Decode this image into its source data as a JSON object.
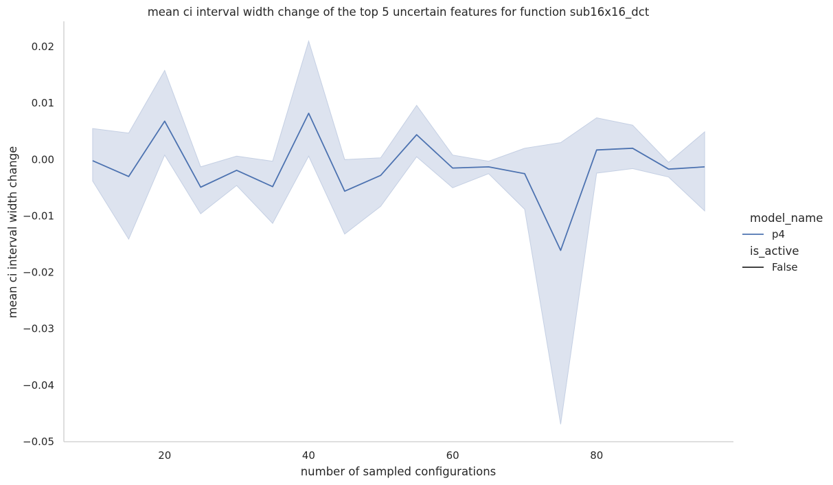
{
  "chart_data": {
    "type": "line",
    "title": "mean ci interval width change of the top 5 uncertain features for function sub16x16_dct",
    "xlabel": "number of sampled configurations",
    "ylabel": "mean ci interval width change",
    "xlim": [
      6,
      99
    ],
    "ylim": [
      -0.05,
      0.0245
    ],
    "xticks": [
      20,
      40,
      60,
      80
    ],
    "yticks": [
      -0.05,
      -0.04,
      -0.03,
      -0.02,
      -0.01,
      0.0,
      0.01,
      0.02
    ],
    "grid": false,
    "legend_position": "right",
    "colors": {
      "line": "#4c72b0",
      "band": "#dde3ef",
      "band_edge": "#c4cfe3"
    },
    "x": [
      10,
      15,
      20,
      25,
      30,
      35,
      40,
      45,
      50,
      55,
      60,
      65,
      70,
      75,
      80,
      85,
      90,
      95
    ],
    "series": [
      {
        "name": "p4",
        "values": [
          -0.0002,
          -0.003,
          0.0068,
          -0.0049,
          -0.0019,
          -0.0048,
          0.0082,
          -0.0056,
          -0.0028,
          0.0044,
          -0.0015,
          -0.0013,
          -0.0025,
          -0.0161,
          0.0017,
          0.002,
          -0.0017,
          -0.0013
        ],
        "ci_lower": [
          -0.0038,
          -0.0141,
          0.0008,
          -0.0096,
          -0.0046,
          -0.0113,
          0.0006,
          -0.0132,
          -0.0083,
          0.0005,
          -0.005,
          -0.0025,
          -0.0088,
          -0.0469,
          -0.0024,
          -0.0016,
          -0.0031,
          -0.0091
        ],
        "ci_upper": [
          0.0055,
          0.0047,
          0.0158,
          -0.0013,
          0.0006,
          -0.0003,
          0.021,
          0.0,
          0.0003,
          0.0096,
          0.0008,
          -0.0003,
          0.002,
          0.003,
          0.0074,
          0.0061,
          -0.0005,
          0.0049
        ]
      }
    ],
    "legend": {
      "hue_title": "model_name",
      "hue_entries": [
        "p4"
      ],
      "style_title": "is_active",
      "style_entries": [
        "False"
      ]
    }
  }
}
